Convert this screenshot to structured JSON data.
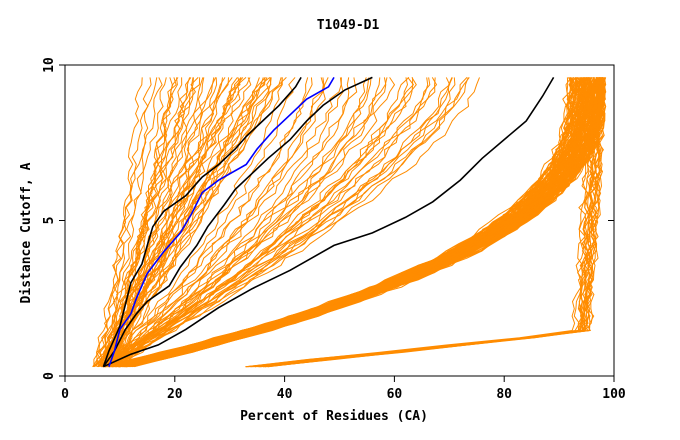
{
  "chart_data": {
    "type": "line",
    "title": "T1049-D1",
    "xlabel": "Percent of Residues (CA)",
    "ylabel": "Distance Cutoff, A",
    "xlim": [
      0,
      100
    ],
    "ylim": [
      0,
      10
    ],
    "x_ticks": [
      "0",
      "20",
      "40",
      "60",
      "80",
      "100"
    ],
    "y_ticks": [
      "0",
      "5",
      "10"
    ],
    "colors": {
      "background_models": "#ff8c00",
      "highlight_black": "#000000",
      "highlight_blue": "#0000ff"
    },
    "background_bundles": [
      {
        "name": "steep-left-group",
        "count": 45,
        "x0": [
          5,
          9
        ],
        "x10": [
          14,
          40
        ]
      },
      {
        "name": "mid-group",
        "count": 35,
        "x0": [
          6,
          10
        ],
        "x10": [
          40,
          75
        ]
      },
      {
        "name": "low-right-group",
        "count": 130,
        "x0": [
          7,
          12
        ],
        "x10": [
          92,
          98
        ]
      },
      {
        "name": "far-right-group",
        "count": 20,
        "x0": [
          32,
          38
        ],
        "x10": [
          96,
          98
        ]
      }
    ],
    "series": [
      {
        "name": "black-1",
        "color": "#000000",
        "points": [
          [
            7,
            0.3
          ],
          [
            8,
            0.8
          ],
          [
            10,
            1.6
          ],
          [
            11,
            2.3
          ],
          [
            12,
            3.0
          ],
          [
            14,
            3.6
          ],
          [
            15,
            4.2
          ],
          [
            16,
            4.8
          ],
          [
            18,
            5.3
          ],
          [
            22,
            5.8
          ],
          [
            25,
            6.4
          ],
          [
            28,
            6.8
          ],
          [
            31,
            7.3
          ],
          [
            33,
            7.7
          ],
          [
            36,
            8.2
          ],
          [
            39,
            8.7
          ],
          [
            42,
            9.3
          ],
          [
            43,
            9.6
          ]
        ]
      },
      {
        "name": "black-2",
        "color": "#000000",
        "points": [
          [
            7,
            0.3
          ],
          [
            9,
            0.8
          ],
          [
            11,
            1.5
          ],
          [
            13,
            2.0
          ],
          [
            15,
            2.4
          ],
          [
            19,
            2.9
          ],
          [
            21,
            3.5
          ],
          [
            24,
            4.2
          ],
          [
            26,
            4.8
          ],
          [
            29,
            5.5
          ],
          [
            31,
            6.0
          ],
          [
            34,
            6.5
          ],
          [
            37,
            7.0
          ],
          [
            41,
            7.6
          ],
          [
            44,
            8.2
          ],
          [
            47,
            8.7
          ],
          [
            51,
            9.2
          ],
          [
            56,
            9.6
          ]
        ]
      },
      {
        "name": "black-3",
        "color": "#000000",
        "points": [
          [
            7,
            0.3
          ],
          [
            12,
            0.7
          ],
          [
            17,
            1.0
          ],
          [
            22,
            1.5
          ],
          [
            28,
            2.2
          ],
          [
            34,
            2.8
          ],
          [
            41,
            3.4
          ],
          [
            49,
            4.2
          ],
          [
            56,
            4.6
          ],
          [
            62,
            5.1
          ],
          [
            67,
            5.6
          ],
          [
            72,
            6.3
          ],
          [
            76,
            7.0
          ],
          [
            80,
            7.6
          ],
          [
            84,
            8.2
          ],
          [
            87,
            9.0
          ],
          [
            89,
            9.6
          ]
        ]
      },
      {
        "name": "blue",
        "color": "#0000ff",
        "points": [
          [
            8,
            0.3
          ],
          [
            9,
            0.8
          ],
          [
            10,
            1.5
          ],
          [
            12,
            2.0
          ],
          [
            13,
            2.5
          ],
          [
            15,
            3.3
          ],
          [
            18,
            4.0
          ],
          [
            21,
            4.6
          ],
          [
            23,
            5.2
          ],
          [
            25,
            5.9
          ],
          [
            28,
            6.3
          ],
          [
            33,
            6.8
          ],
          [
            35,
            7.3
          ],
          [
            38,
            7.9
          ],
          [
            41,
            8.4
          ],
          [
            44,
            8.9
          ],
          [
            48,
            9.3
          ],
          [
            49,
            9.6
          ]
        ]
      }
    ]
  }
}
